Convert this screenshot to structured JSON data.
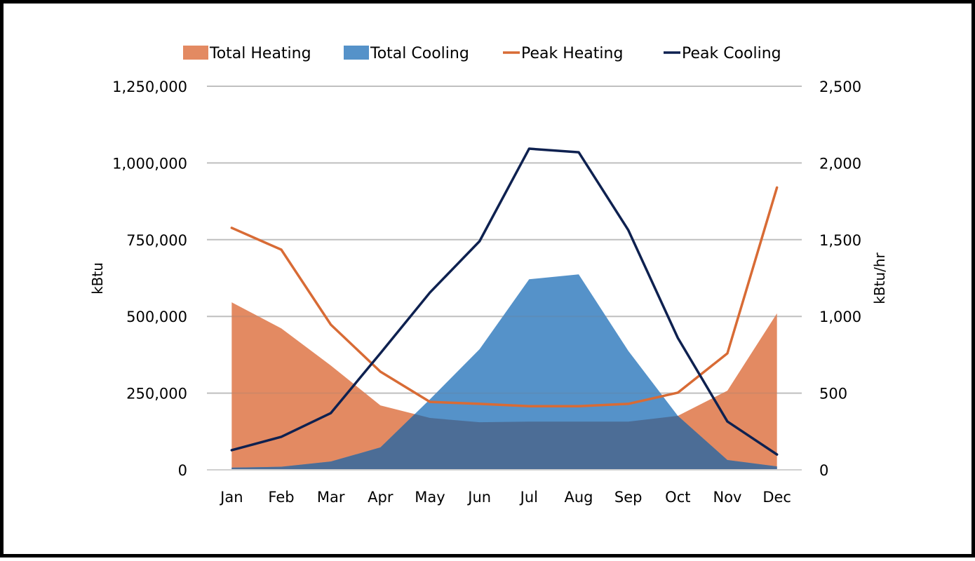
{
  "chart_data": {
    "type": "area",
    "title": "",
    "categories": [
      "Jan",
      "Feb",
      "Mar",
      "Apr",
      "May",
      "Jun",
      "Jul",
      "Aug",
      "Sep",
      "Oct",
      "Nov",
      "Dec"
    ],
    "y_left": {
      "label": "kBtu",
      "range": [
        0,
        1250000
      ],
      "ticks": [
        0,
        250000,
        500000,
        750000,
        1000000,
        1250000
      ],
      "tick_labels": [
        "0",
        "250,000",
        "500,000",
        "750,000",
        "1,000,000",
        "1,250,000"
      ]
    },
    "y_right": {
      "label": "kBtu/hr",
      "range": [
        0,
        2500
      ],
      "ticks": [
        0,
        500,
        1000,
        1500,
        2000,
        2500
      ],
      "tick_labels": [
        "0",
        "500",
        "1,000",
        "1,500",
        "2,000",
        "2,500"
      ]
    },
    "grid": true,
    "legend_position": "top",
    "series": [
      {
        "name": "Total Heating",
        "kind": "area",
        "axis": "left",
        "color": "#e38a62",
        "values": [
          546000,
          461000,
          340000,
          210000,
          169000,
          155000,
          157000,
          157000,
          157000,
          176000,
          258000,
          510000
        ]
      },
      {
        "name": "Total Cooling",
        "kind": "area",
        "axis": "left",
        "color": "#5592c9",
        "values": [
          7000,
          10000,
          27000,
          73000,
          230000,
          393000,
          621000,
          637000,
          388000,
          176000,
          32000,
          11000
        ]
      },
      {
        "name": "Peak Heating",
        "kind": "line",
        "axis": "right",
        "color": "#d86b35",
        "values": [
          1577,
          1435,
          946,
          640,
          443,
          430,
          415,
          415,
          430,
          503,
          759,
          1840
        ]
      },
      {
        "name": "Peak Cooling",
        "kind": "line",
        "axis": "right",
        "color": "#0e2150",
        "values": [
          128,
          215,
          370,
          760,
          1156,
          1490,
          2093,
          2070,
          1563,
          860,
          315,
          100
        ]
      }
    ],
    "overlap_color": "#4c6d96"
  }
}
